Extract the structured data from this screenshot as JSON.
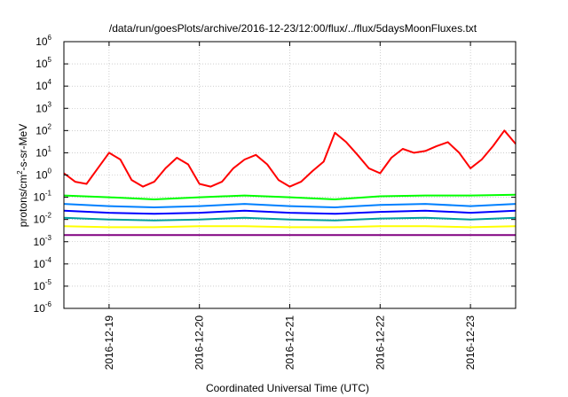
{
  "chart_data": {
    "type": "line",
    "title": "/data/run/goesPlots/archive/2016-12-23/12:00/flux/../flux/5daysMoonFluxes.txt",
    "xlabel": "Coordinated Universal Time (UTC)",
    "ylabel": "protons/cm²-s-sr-MeV",
    "ylabel_parts": {
      "base": "protons/cm",
      "sup": "2",
      "rest": "-s-sr-MeV"
    },
    "yscale": "log",
    "ylim": [
      1e-06,
      1000000.0
    ],
    "y_tick_mantissa": "10",
    "y_ticks": [
      {
        "exp": "-6",
        "value": 1e-06
      },
      {
        "exp": "-5",
        "value": 1e-05
      },
      {
        "exp": "-4",
        "value": 0.0001
      },
      {
        "exp": "-3",
        "value": 0.001
      },
      {
        "exp": "-2",
        "value": 0.01
      },
      {
        "exp": "-1",
        "value": 0.1
      },
      {
        "exp": "0",
        "value": 1
      },
      {
        "exp": "1",
        "value": 10
      },
      {
        "exp": "2",
        "value": 100
      },
      {
        "exp": "3",
        "value": 1000.0
      },
      {
        "exp": "4",
        "value": 10000.0
      },
      {
        "exp": "5",
        "value": 100000.0
      },
      {
        "exp": "6",
        "value": 1000000.0
      }
    ],
    "xlim": [
      "2016-12-18T12:00",
      "2016-12-23T12:00"
    ],
    "x_ticks": [
      {
        "label": "2016-12-19",
        "value": "2016-12-19T00:00"
      },
      {
        "label": "2016-12-20",
        "value": "2016-12-20T00:00"
      },
      {
        "label": "2016-12-21",
        "value": "2016-12-21T00:00"
      },
      {
        "label": "2016-12-22",
        "value": "2016-12-22T00:00"
      },
      {
        "label": "2016-12-23",
        "value": "2016-12-23T00:00"
      }
    ],
    "grid": true,
    "legend": "none",
    "series": [
      {
        "color": "#ff0000",
        "x": [
          "2016-12-18T12:00",
          "2016-12-18T15:00",
          "2016-12-18T18:00",
          "2016-12-18T21:00",
          "2016-12-19T00:00",
          "2016-12-19T03:00",
          "2016-12-19T06:00",
          "2016-12-19T09:00",
          "2016-12-19T12:00",
          "2016-12-19T15:00",
          "2016-12-19T18:00",
          "2016-12-19T21:00",
          "2016-12-20T00:00",
          "2016-12-20T03:00",
          "2016-12-20T06:00",
          "2016-12-20T09:00",
          "2016-12-20T12:00",
          "2016-12-20T15:00",
          "2016-12-20T18:00",
          "2016-12-20T21:00",
          "2016-12-21T00:00",
          "2016-12-21T03:00",
          "2016-12-21T06:00",
          "2016-12-21T09:00",
          "2016-12-21T12:00",
          "2016-12-21T15:00",
          "2016-12-21T18:00",
          "2016-12-21T21:00",
          "2016-12-22T00:00",
          "2016-12-22T03:00",
          "2016-12-22T06:00",
          "2016-12-22T09:00",
          "2016-12-22T12:00",
          "2016-12-22T15:00",
          "2016-12-22T18:00",
          "2016-12-22T21:00",
          "2016-12-23T00:00",
          "2016-12-23T03:00",
          "2016-12-23T06:00",
          "2016-12-23T09:00",
          "2016-12-23T12:00"
        ],
        "values": [
          1.2,
          0.5,
          0.4,
          2,
          10,
          5,
          0.6,
          0.3,
          0.5,
          2,
          6,
          3,
          0.4,
          0.3,
          0.5,
          2,
          5,
          8,
          3,
          0.6,
          0.3,
          0.5,
          1.5,
          4,
          80,
          30,
          8,
          2,
          1.2,
          6,
          15,
          10,
          12,
          20,
          30,
          10,
          2,
          5,
          20,
          100,
          25
        ]
      },
      {
        "color": "#00ff00",
        "x": [
          "2016-12-18T12:00",
          "2016-12-19T00:00",
          "2016-12-19T12:00",
          "2016-12-20T00:00",
          "2016-12-20T12:00",
          "2016-12-21T00:00",
          "2016-12-21T12:00",
          "2016-12-22T00:00",
          "2016-12-22T12:00",
          "2016-12-23T00:00",
          "2016-12-23T12:00"
        ],
        "values": [
          0.12,
          0.1,
          0.08,
          0.1,
          0.12,
          0.1,
          0.08,
          0.11,
          0.12,
          0.12,
          0.13
        ]
      },
      {
        "color": "#0080ff",
        "x": [
          "2016-12-18T12:00",
          "2016-12-19T00:00",
          "2016-12-19T12:00",
          "2016-12-20T00:00",
          "2016-12-20T12:00",
          "2016-12-21T00:00",
          "2016-12-21T12:00",
          "2016-12-22T00:00",
          "2016-12-22T12:00",
          "2016-12-23T00:00",
          "2016-12-23T12:00"
        ],
        "values": [
          0.05,
          0.04,
          0.035,
          0.04,
          0.05,
          0.04,
          0.035,
          0.045,
          0.05,
          0.04,
          0.05
        ]
      },
      {
        "color": "#0000ff",
        "x": [
          "2016-12-18T12:00",
          "2016-12-19T00:00",
          "2016-12-19T12:00",
          "2016-12-20T00:00",
          "2016-12-20T12:00",
          "2016-12-21T00:00",
          "2016-12-21T12:00",
          "2016-12-22T00:00",
          "2016-12-22T12:00",
          "2016-12-23T00:00",
          "2016-12-23T12:00"
        ],
        "values": [
          0.025,
          0.02,
          0.018,
          0.02,
          0.025,
          0.02,
          0.018,
          0.022,
          0.025,
          0.02,
          0.025
        ]
      },
      {
        "color": "#00a0a0",
        "x": [
          "2016-12-18T12:00",
          "2016-12-19T00:00",
          "2016-12-19T12:00",
          "2016-12-20T00:00",
          "2016-12-20T12:00",
          "2016-12-21T00:00",
          "2016-12-21T12:00",
          "2016-12-22T00:00",
          "2016-12-22T12:00",
          "2016-12-23T00:00",
          "2016-12-23T12:00"
        ],
        "values": [
          0.012,
          0.01,
          0.009,
          0.01,
          0.012,
          0.01,
          0.009,
          0.011,
          0.012,
          0.01,
          0.012
        ]
      },
      {
        "color": "#ffff00",
        "x": [
          "2016-12-18T12:00",
          "2016-12-19T00:00",
          "2016-12-19T12:00",
          "2016-12-20T00:00",
          "2016-12-20T12:00",
          "2016-12-21T00:00",
          "2016-12-21T12:00",
          "2016-12-22T00:00",
          "2016-12-22T12:00",
          "2016-12-23T00:00",
          "2016-12-23T12:00"
        ],
        "values": [
          0.005,
          0.0045,
          0.0045,
          0.005,
          0.005,
          0.0045,
          0.0045,
          0.005,
          0.005,
          0.0045,
          0.005
        ]
      },
      {
        "color": "#800080",
        "x": [
          "2016-12-18T12:00",
          "2016-12-19T00:00",
          "2016-12-19T12:00",
          "2016-12-20T00:00",
          "2016-12-20T12:00",
          "2016-12-21T00:00",
          "2016-12-21T12:00",
          "2016-12-22T00:00",
          "2016-12-22T12:00",
          "2016-12-23T00:00",
          "2016-12-23T12:00"
        ],
        "values": [
          0.002,
          0.002,
          0.002,
          0.002,
          0.002,
          0.002,
          0.002,
          0.002,
          0.002,
          0.002,
          0.002
        ]
      }
    ]
  }
}
